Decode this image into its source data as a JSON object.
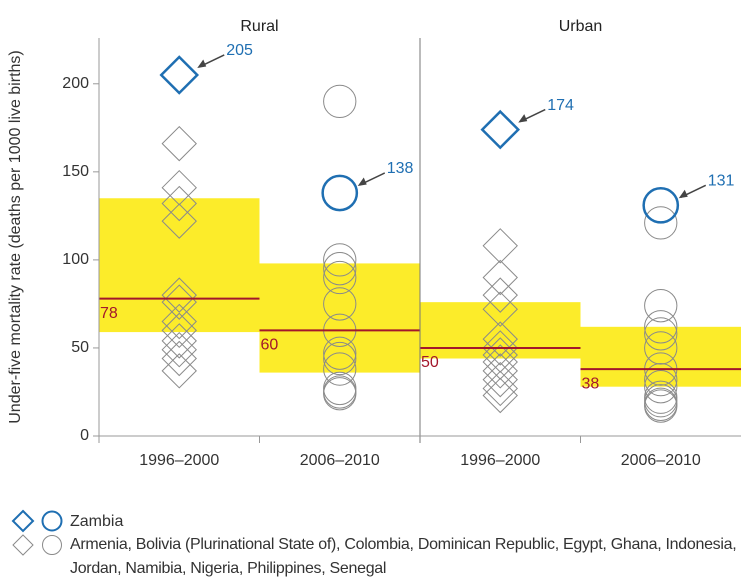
{
  "chart_data": {
    "type": "dot",
    "y_label": "Under-five mortality rate (deaths per 1000 live births)",
    "ylim": [
      0,
      226
    ],
    "yticks": [
      0,
      50,
      100,
      150,
      200
    ],
    "box_color": "#fcec2a",
    "median_color": "#a3172b",
    "highlight_color": "#1f6fb2",
    "other_color": "#8a8a8a",
    "panels": [
      {
        "title": "Rural",
        "groups": [
          {
            "category": "1996–2000",
            "marker": "diamond",
            "q1": 59,
            "q3": 135,
            "median": 78,
            "zambia": 205,
            "others": [
              166,
              141,
              132,
              122,
              80,
              76,
              65,
              60,
              54,
              49,
              44,
              37
            ]
          },
          {
            "category": "2006–2010",
            "marker": "circle",
            "q1": 36,
            "q3": 98,
            "median": 60,
            "zambia": 138,
            "others": [
              190,
              100,
              95,
              90,
              75,
              60,
              47,
              44,
              38,
              27,
              25,
              24
            ]
          }
        ]
      },
      {
        "title": "Urban",
        "groups": [
          {
            "category": "1996–2000",
            "marker": "diamond",
            "q1": 44,
            "q3": 76,
            "median": 50,
            "zambia": 174,
            "others": [
              108,
              90,
              80,
              72,
              55,
              50,
              46,
              42,
              37,
              32,
              27,
              23
            ]
          },
          {
            "category": "2006–2010",
            "marker": "circle",
            "q1": 28,
            "q3": 62,
            "median": 38,
            "zambia": 131,
            "others": [
              121,
              74,
              62,
              58,
              50,
              38,
              32,
              28,
              22,
              20,
              18,
              17
            ]
          }
        ]
      }
    ],
    "legend": {
      "highlight": "Zambia",
      "others": "Armenia, Bolivia (Plurinational State of), Colombia, Dominican Republic, Egypt, Ghana, Indonesia, Jordan, Namibia, Nigeria, Philippines, Senegal"
    }
  }
}
